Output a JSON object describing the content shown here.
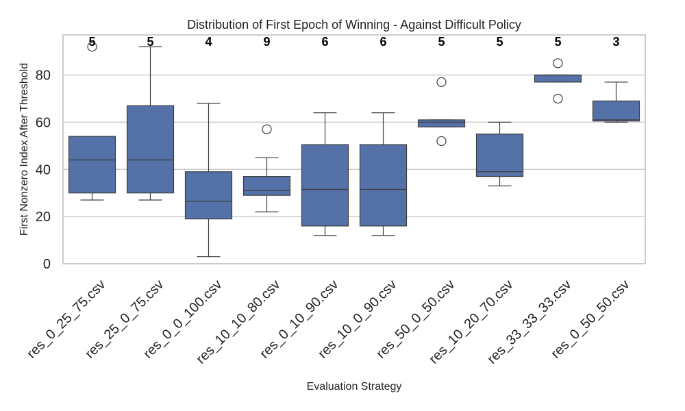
{
  "chart_data": {
    "type": "box",
    "title": "Distribution of First Epoch of Winning - Against Difficult Policy",
    "xlabel": "Evaluation Strategy",
    "ylabel": "First Nonzero Index After Threshold",
    "ylim": [
      0,
      97
    ],
    "yticks": [
      0,
      20,
      40,
      60,
      80
    ],
    "grid": "horizontal",
    "color": "#5471a8",
    "categories": [
      "res_0_25_75.csv",
      "res_25_0_75.csv",
      "res_0_0_100.csv",
      "res_10_10_80.csv",
      "res_0_10_90.csv",
      "res_10_0_90.csv",
      "res_50_0_50.csv",
      "res_10_20_70.csv",
      "res_33_33_33.csv",
      "res_0_50_50.csv"
    ],
    "counts": [
      "5",
      "5",
      "4",
      "9",
      "6",
      "6",
      "5",
      "5",
      "5",
      "3"
    ],
    "boxes": [
      {
        "whisker_low": 27,
        "q1": 30,
        "median": 44,
        "q3": 54,
        "whisker_high": 54,
        "outliers": [
          92
        ]
      },
      {
        "whisker_low": 27,
        "q1": 30,
        "median": 44,
        "q3": 67,
        "whisker_high": 92,
        "outliers": []
      },
      {
        "whisker_low": 3,
        "q1": 19,
        "median": 26.5,
        "q3": 39,
        "whisker_high": 68,
        "outliers": []
      },
      {
        "whisker_low": 22,
        "q1": 29,
        "median": 31,
        "q3": 37,
        "whisker_high": 45,
        "outliers": [
          57
        ]
      },
      {
        "whisker_low": 12,
        "q1": 16,
        "median": 31.5,
        "q3": 50.5,
        "whisker_high": 64,
        "outliers": []
      },
      {
        "whisker_low": 12,
        "q1": 16,
        "median": 31.5,
        "q3": 50.5,
        "whisker_high": 64,
        "outliers": []
      },
      {
        "whisker_low": 58,
        "q1": 58,
        "median": 60,
        "q3": 61,
        "whisker_high": 61,
        "outliers": [
          77,
          52
        ]
      },
      {
        "whisker_low": 33,
        "q1": 37,
        "median": 39,
        "q3": 55,
        "whisker_high": 60,
        "outliers": []
      },
      {
        "whisker_low": 77,
        "q1": 77,
        "median": 80,
        "q3": 80,
        "whisker_high": 80,
        "outliers": [
          85,
          70
        ]
      },
      {
        "whisker_low": 60,
        "q1": 60.5,
        "median": 61,
        "q3": 69,
        "whisker_high": 77,
        "outliers": []
      }
    ]
  }
}
